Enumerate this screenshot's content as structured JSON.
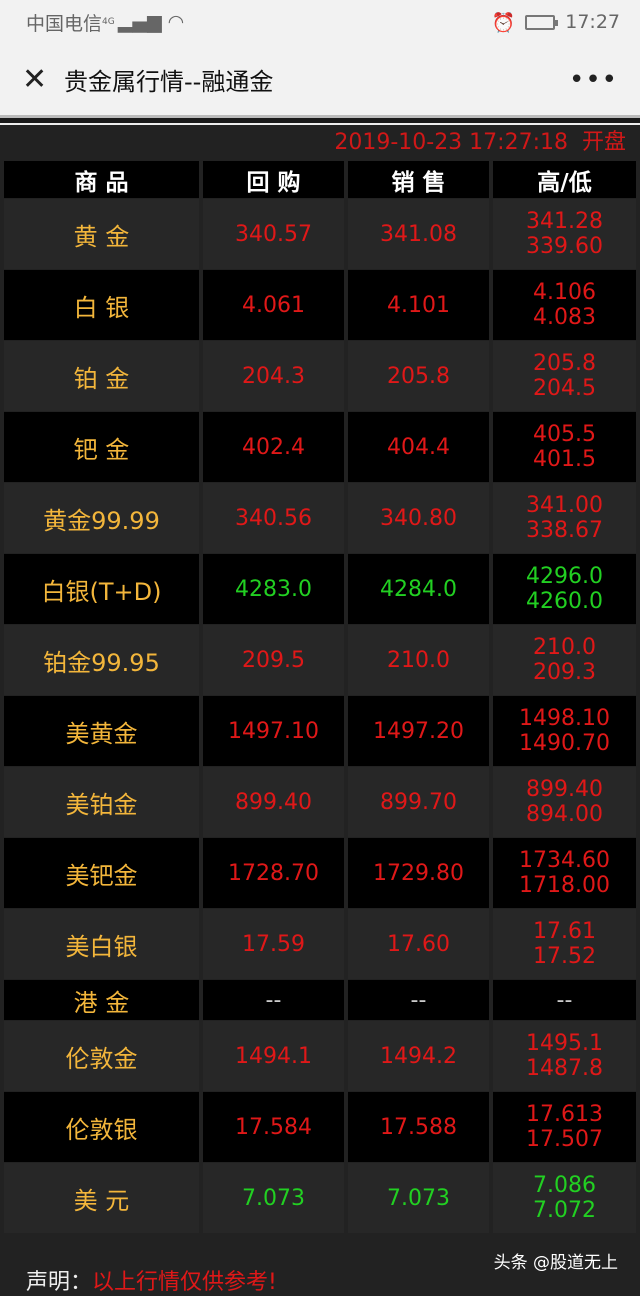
{
  "status": {
    "carrier": "中国电信",
    "network": "4G",
    "time": "17:27",
    "icons": [
      "signal-icon",
      "wifi-icon",
      "alarm-icon",
      "battery-charging-icon"
    ]
  },
  "nav": {
    "close_icon": "close-icon",
    "title": "贵金属行情--融通金",
    "more_icon": "more-icon"
  },
  "timestamp": "2019-10-23 17:27:18",
  "market_status": "开盘",
  "headers": [
    "商 品",
    "回 购",
    "销 售",
    "高/低"
  ],
  "colors": {
    "up": "#e01818",
    "down": "#22d022",
    "name": "#f3b63b"
  },
  "rows": [
    {
      "name": "黄 金",
      "buy": "340.57",
      "sell": "341.08",
      "high": "341.28",
      "low": "339.60",
      "color": "red"
    },
    {
      "name": "白 银",
      "buy": "4.061",
      "sell": "4.101",
      "high": "4.106",
      "low": "4.083",
      "color": "red"
    },
    {
      "name": "铂 金",
      "buy": "204.3",
      "sell": "205.8",
      "high": "205.8",
      "low": "204.5",
      "color": "red"
    },
    {
      "name": "钯 金",
      "buy": "402.4",
      "sell": "404.4",
      "high": "405.5",
      "low": "401.5",
      "color": "red"
    },
    {
      "name": "黄金99.99",
      "buy": "340.56",
      "sell": "340.80",
      "high": "341.00",
      "low": "338.67",
      "color": "red"
    },
    {
      "name": "白银(T+D)",
      "buy": "4283.0",
      "sell": "4284.0",
      "high": "4296.0",
      "low": "4260.0",
      "color": "green"
    },
    {
      "name": "铂金99.95",
      "buy": "209.5",
      "sell": "210.0",
      "high": "210.0",
      "low": "209.3",
      "color": "red"
    },
    {
      "name": "美黄金",
      "buy": "1497.10",
      "sell": "1497.20",
      "high": "1498.10",
      "low": "1490.70",
      "color": "red"
    },
    {
      "name": "美铂金",
      "buy": "899.40",
      "sell": "899.70",
      "high": "899.40",
      "low": "894.00",
      "color": "red"
    },
    {
      "name": "美钯金",
      "buy": "1728.70",
      "sell": "1729.80",
      "high": "1734.60",
      "low": "1718.00",
      "color": "red"
    },
    {
      "name": "美白银",
      "buy": "17.59",
      "sell": "17.60",
      "high": "17.61",
      "low": "17.52",
      "color": "red"
    },
    {
      "name": "港 金",
      "buy": "--",
      "sell": "--",
      "high": "--",
      "low": "",
      "color": "dash"
    },
    {
      "name": "伦敦金",
      "buy": "1494.1",
      "sell": "1494.2",
      "high": "1495.1",
      "low": "1487.8",
      "color": "red"
    },
    {
      "name": "伦敦银",
      "buy": "17.584",
      "sell": "17.588",
      "high": "17.613",
      "low": "17.507",
      "color": "red"
    },
    {
      "name": "美 元",
      "buy": "7.073",
      "sell": "7.073",
      "high": "7.086",
      "low": "7.072",
      "color": "green"
    }
  ],
  "footer": {
    "label": "声明：",
    "text": "以上行情仅供参考!",
    "watermark": "头条 @股道无上"
  }
}
